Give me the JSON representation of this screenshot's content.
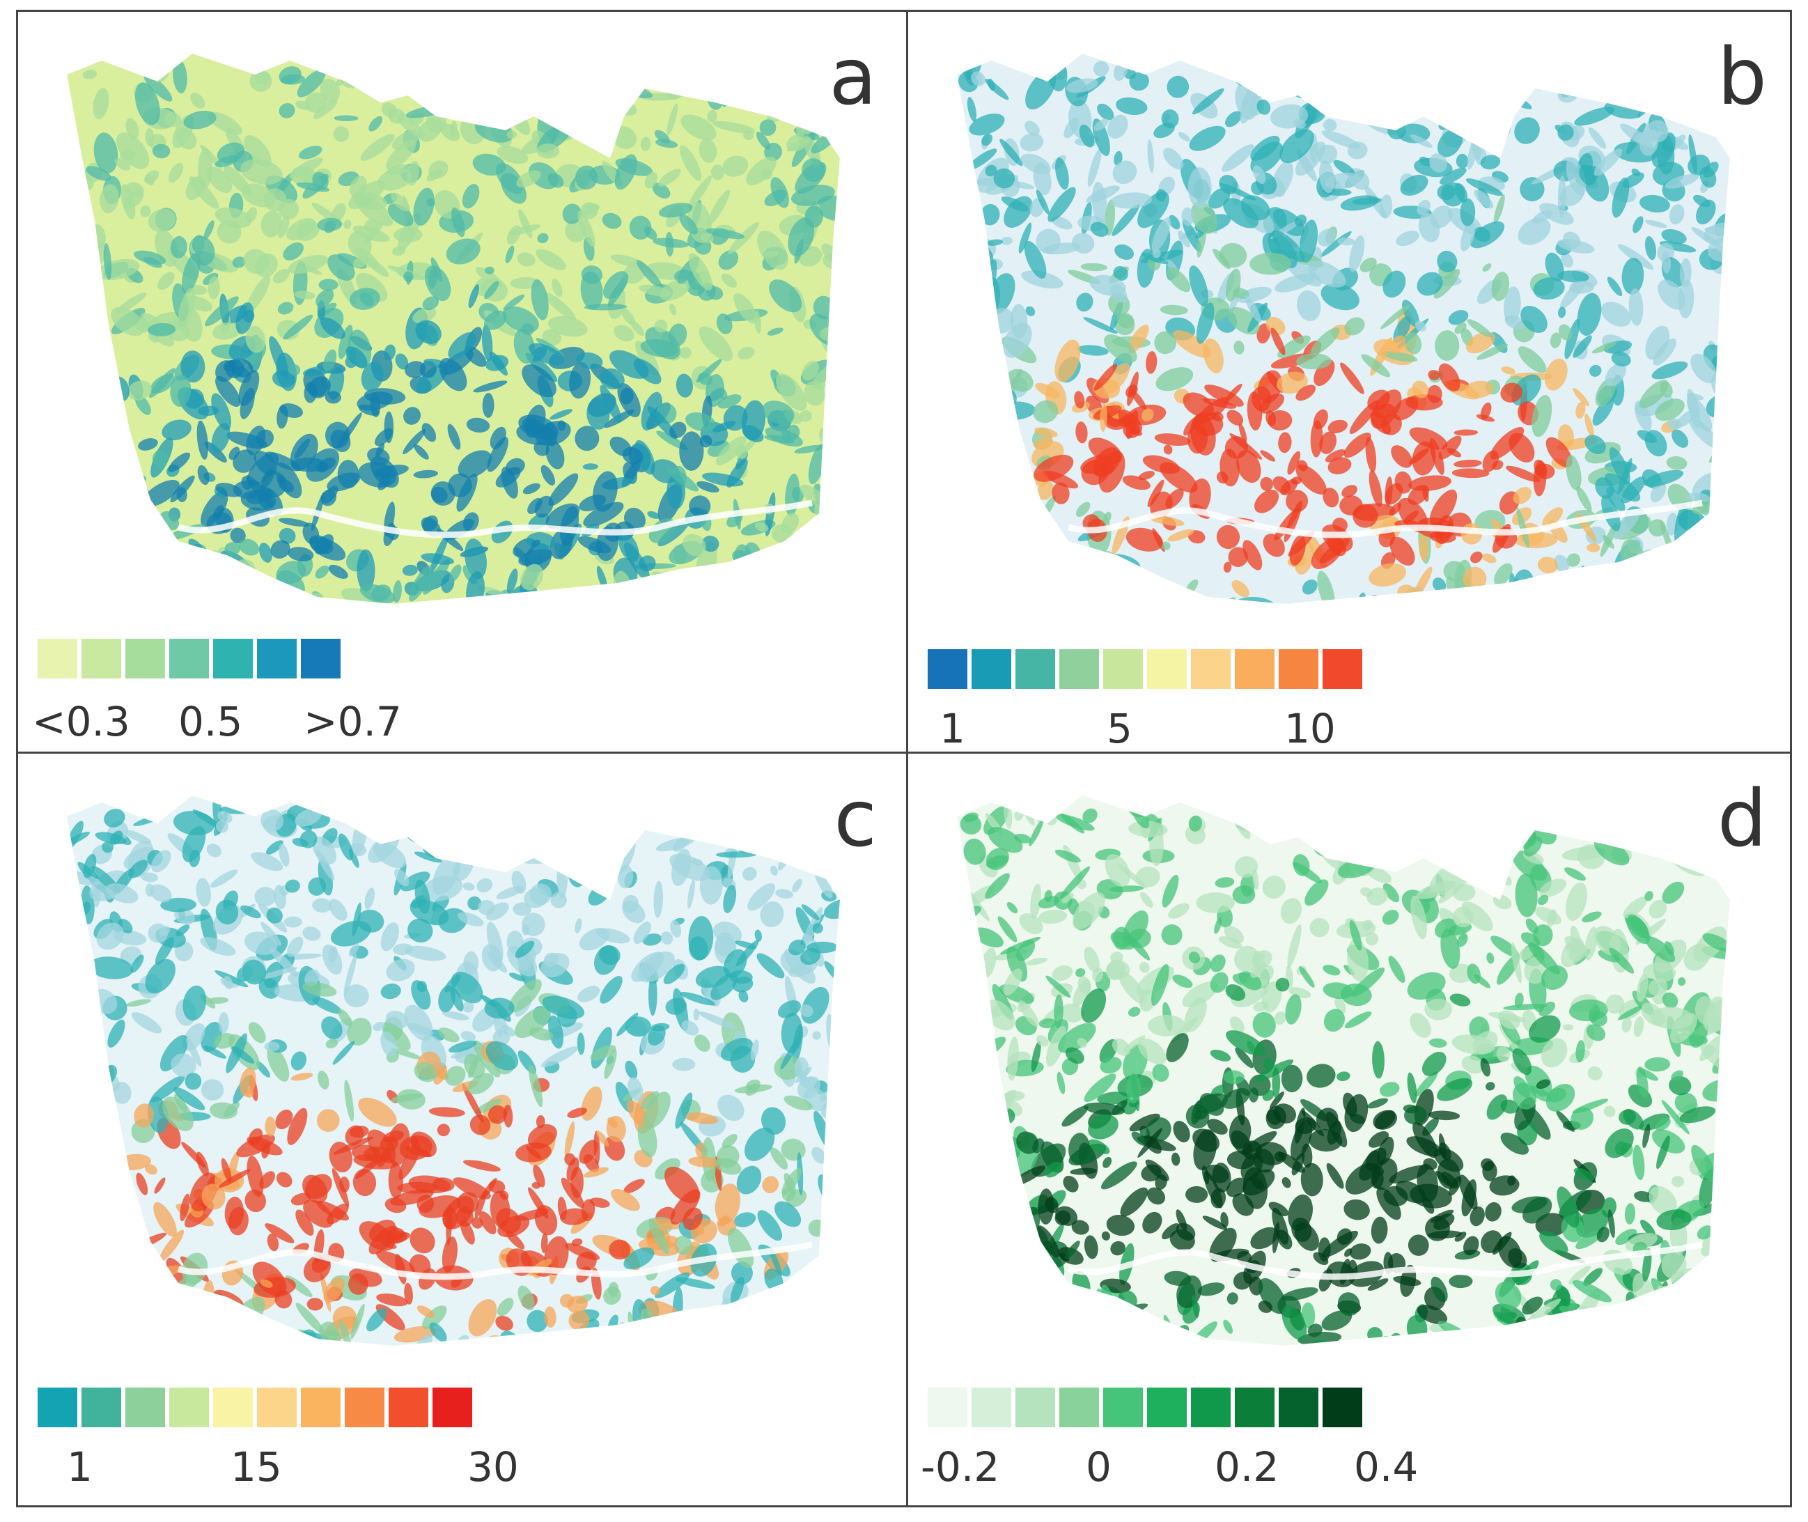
{
  "panels": [
    {
      "letter": "a",
      "legend": {
        "colors": [
          "#e8f3b0",
          "#c9e8a0",
          "#a6dc9c",
          "#6fc8a6",
          "#2fb3b0",
          "#1b98bb",
          "#1679b8"
        ],
        "ticks": [
          "<0.3",
          "0.5",
          ">0.7"
        ]
      },
      "map_palette": [
        "#d9ef9e",
        "#a6dc9c",
        "#4fbaa8",
        "#1f9bb5",
        "#137fae"
      ]
    },
    {
      "letter": "b",
      "legend": {
        "colors": [
          "#1673b7",
          "#1a9bb5",
          "#46b5a5",
          "#8fd09d",
          "#c8e79c",
          "#f5f3a4",
          "#fbd38a",
          "#f9ad5d",
          "#f68541",
          "#f0492b"
        ],
        "ticks": [
          "1",
          "5",
          "10"
        ]
      },
      "map_palette": [
        "#e3f1f6",
        "#9fd3de",
        "#2fb0b6",
        "#7fcc9c",
        "#f7b560",
        "#ef3d22"
      ]
    },
    {
      "letter": "c",
      "legend": {
        "colors": [
          "#14a3b2",
          "#41b39c",
          "#8dd09b",
          "#c8e89e",
          "#f9f3a5",
          "#fcd58a",
          "#fab35f",
          "#f78a45",
          "#f2502d",
          "#e8201d"
        ],
        "ticks": [
          "1",
          "15",
          "30"
        ]
      },
      "map_palette": [
        "#e6f3f7",
        "#a3d6df",
        "#2fb1b4",
        "#86cf9c",
        "#f6a55a",
        "#ea3f22"
      ]
    },
    {
      "letter": "d",
      "legend": {
        "colors": [
          "#eef8ee",
          "#d5efd9",
          "#b5e3bd",
          "#89d29c",
          "#45c47a",
          "#1fb05d",
          "#10994b",
          "#0b7e3a",
          "#06622c",
          "#023d19"
        ],
        "ticks": [
          "-0.2",
          "0",
          "0.2",
          "0.4"
        ]
      },
      "map_palette": [
        "#eef8ee",
        "#b5e3bd",
        "#45c47a",
        "#10994b",
        "#06622c",
        "#023d19"
      ]
    }
  ]
}
